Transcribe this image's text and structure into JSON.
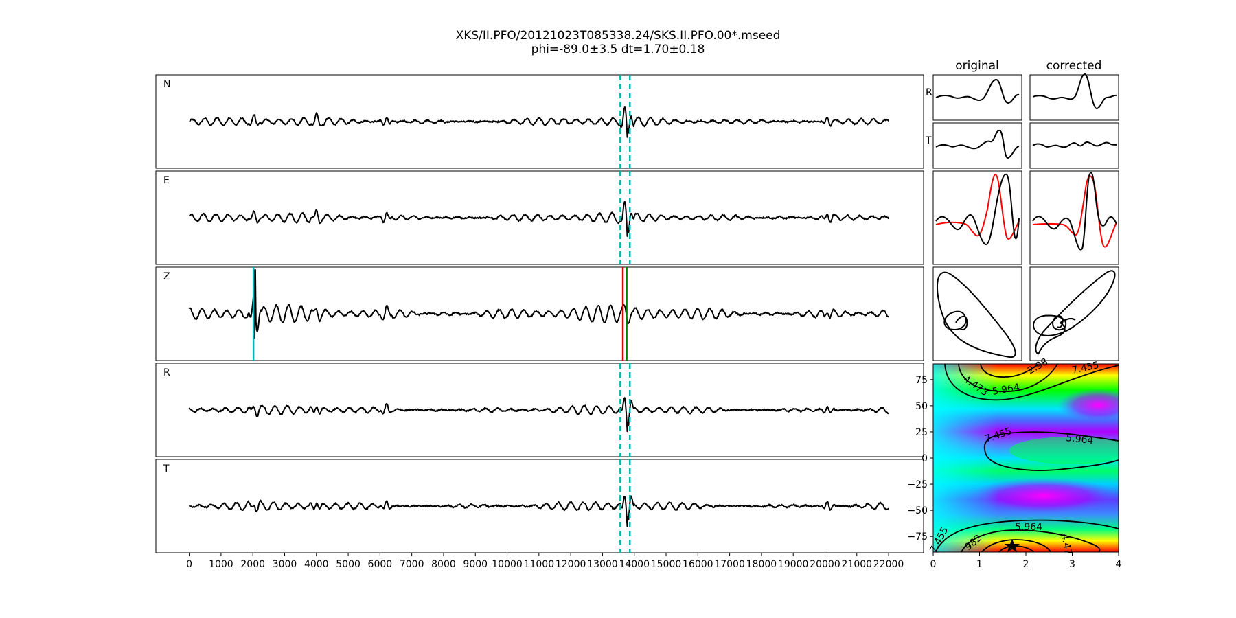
{
  "title": {
    "line1": "XKS/II.PFO/20121023T085338.24/SKS.II.PFO.00*.mseed",
    "line2": "phi=-89.0±3.5 dt=1.70±0.18"
  },
  "columns": {
    "original": "original",
    "corrected": "corrected"
  },
  "small_row_labels": [
    "R",
    "T"
  ],
  "colors": {
    "trace": "#000000",
    "window_marker": "#00b4b4",
    "arrival_red": "#e00000",
    "arrival_green": "#008000",
    "rotated_red": "#ff0000"
  },
  "chart_data": [
    {
      "type": "line",
      "description_free": true,
      "panels": [
        {
          "label": "N",
          "amp_scale": 0.9,
          "spike_at": 13780
        },
        {
          "label": "E",
          "amp_scale": 1.0,
          "spike_at": 13780
        },
        {
          "label": "Z",
          "amp_scale": 1.3,
          "spike_at": 2060
        },
        {
          "label": "R",
          "amp_scale": 0.9,
          "spike_at": 13780
        },
        {
          "label": "T",
          "amp_scale": 0.9,
          "spike_at": 13780
        }
      ],
      "x_ticks": [
        "0",
        "1000",
        "2000",
        "3000",
        "4000",
        "5000",
        "6000",
        "7000",
        "8000",
        "9000",
        "10000",
        "11000",
        "12000",
        "13000",
        "14000",
        "15000",
        "16000",
        "17000",
        "18000",
        "19000",
        "20000",
        "21000",
        "22000"
      ],
      "xlim": [
        -1050,
        23100
      ],
      "trace_range": [
        0,
        22000
      ],
      "window_lines": [
        13560,
        13860
      ],
      "z_arrivals": [
        {
          "x": 2020,
          "color": "cyan"
        },
        {
          "x": 13640,
          "color": "red"
        },
        {
          "x": 13760,
          "color": "green"
        }
      ]
    },
    {
      "type": "heatmap",
      "x_ticks": [
        "0",
        "1",
        "2",
        "3",
        "4"
      ],
      "y_ticks": [
        "75",
        "50",
        "25",
        "0",
        "−25",
        "−50",
        "−75"
      ],
      "xlim": [
        0,
        4
      ],
      "ylim": [
        -90,
        90
      ],
      "contour_labels": [
        "2.98",
        "4.473",
        "5.964",
        "7.455",
        "7.455",
        "5.964",
        "5.964",
        "4.47",
        "982",
        "7.455"
      ],
      "best": {
        "dt": 1.7,
        "phi": -89.0
      }
    }
  ]
}
